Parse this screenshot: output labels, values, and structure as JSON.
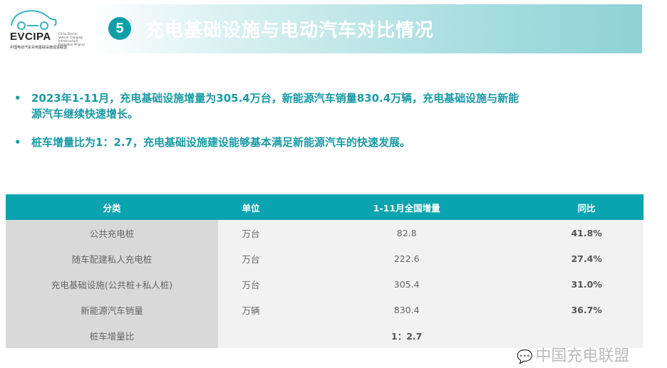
{
  "logo": {
    "brand": "EVCIPA",
    "en": "China Electric Vehicle Charging Infrastructure Promotion Alliance",
    "cn": "中国电动汽车充电基础设施促进联盟"
  },
  "header": {
    "number": "5",
    "title": "充电基础设施与电动汽车对比情况"
  },
  "bullets": [
    {
      "dot": "•",
      "lines": [
        "2023年1-11月，充电基础设施增量为305.4万台，新能源汽车销量830.4万辆，充电基础设施与新能",
        "源汽车继续快速增长。"
      ]
    },
    {
      "dot": "•",
      "lines": [
        "桩车增量比为1：2.7，充电基础设施建设能够基本满足新能源汽车的快速发展。"
      ]
    }
  ],
  "table": {
    "headers": [
      "分类",
      "单位",
      "1-11月全国增量",
      "同比"
    ],
    "rows": [
      [
        "公共充电桩",
        "万台",
        "82.8",
        "41.8%"
      ],
      [
        "随车配建私人充电桩",
        "万台",
        "222.6",
        "27.4%"
      ],
      [
        "充电基础设施(公共桩+私人桩)",
        "万台",
        "305.4",
        "31.0%"
      ],
      [
        "新能源汽车销量",
        "万辆",
        "830.4",
        "36.7%"
      ],
      [
        "桩车增量比",
        "",
        "1：2.7",
        ""
      ]
    ]
  },
  "watermark": {
    "text": "中国充电联盟",
    "icon": "wechat-icon"
  },
  "colors": {
    "accent": "#0aa4b1",
    "bullet_text": "#1a9aa5"
  }
}
